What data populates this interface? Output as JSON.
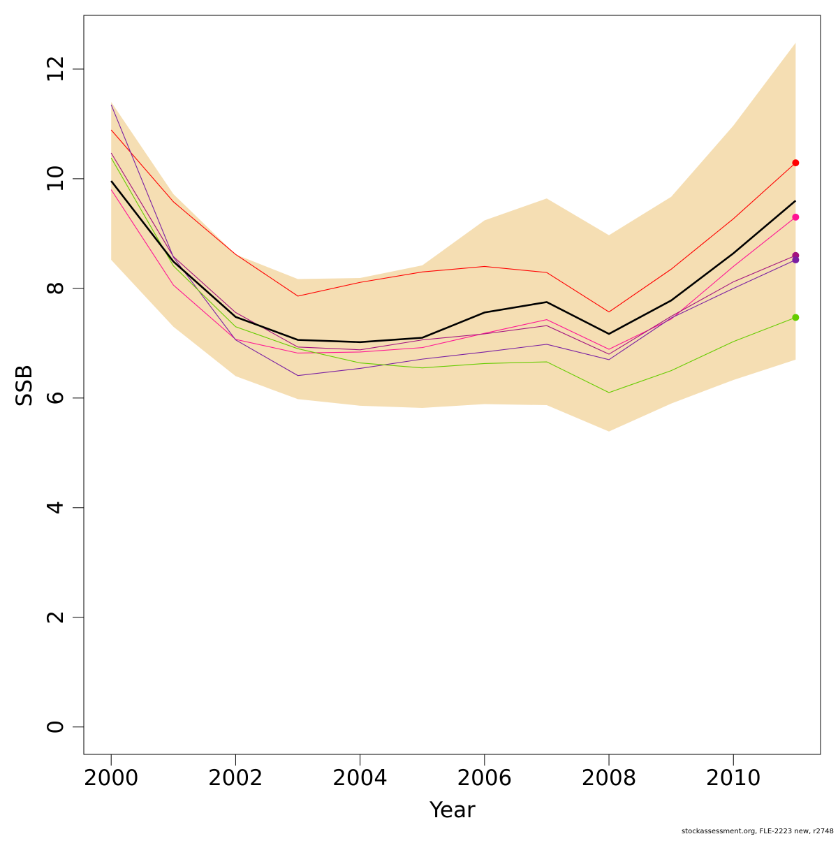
{
  "footer": "stockassessment.org, FLE-2223 new, r2748",
  "chart_data": {
    "type": "line",
    "title": "",
    "xlabel": "Year",
    "ylabel": "SSB",
    "xlim": [
      1999.56,
      2011.4
    ],
    "ylim": [
      -0.5,
      12.98
    ],
    "x_ticks": [
      2000,
      2002,
      2004,
      2006,
      2008,
      2010
    ],
    "y_ticks": [
      0,
      2,
      4,
      6,
      8,
      10,
      12
    ],
    "grid": false,
    "legend": "none",
    "x": [
      2000,
      2001,
      2002,
      2003,
      2004,
      2005,
      2006,
      2007,
      2008,
      2009,
      2010,
      2011
    ],
    "band": {
      "color": "#f5deb3",
      "lower": [
        8.52,
        7.3,
        6.4,
        5.98,
        5.86,
        5.82,
        5.89,
        5.87,
        5.39,
        5.9,
        6.33,
        6.7
      ],
      "upper": [
        11.4,
        9.72,
        8.62,
        8.17,
        8.19,
        8.42,
        9.24,
        9.64,
        8.97,
        9.67,
        10.97,
        12.48
      ]
    },
    "estimate": {
      "color": "#000000",
      "values": [
        9.96,
        8.49,
        7.48,
        7.06,
        7.02,
        7.1,
        7.56,
        7.75,
        7.17,
        7.78,
        8.64,
        9.6
      ]
    },
    "series": [
      {
        "color": "#ff0000",
        "values": [
          10.89,
          9.58,
          8.62,
          7.86,
          8.11,
          8.3,
          8.4,
          8.29,
          7.57,
          8.35,
          9.27,
          10.29
        ]
      },
      {
        "color": "#ff1493",
        "values": [
          9.8,
          8.06,
          7.07,
          6.82,
          6.84,
          6.92,
          7.18,
          7.43,
          6.89,
          7.44,
          8.4,
          9.3
        ]
      },
      {
        "color": "#a4127e",
        "values": [
          10.47,
          8.58,
          7.56,
          6.93,
          6.88,
          7.06,
          7.17,
          7.32,
          6.8,
          7.49,
          8.12,
          8.6
        ]
      },
      {
        "color": "#7a1fa2",
        "values": [
          11.35,
          8.57,
          7.06,
          6.41,
          6.54,
          6.71,
          6.84,
          6.98,
          6.7,
          7.46,
          8.0,
          8.52
        ]
      },
      {
        "color": "#66cc00",
        "values": [
          10.38,
          8.41,
          7.3,
          6.9,
          6.64,
          6.55,
          6.63,
          6.66,
          6.1,
          6.5,
          7.03,
          7.47
        ]
      }
    ]
  }
}
